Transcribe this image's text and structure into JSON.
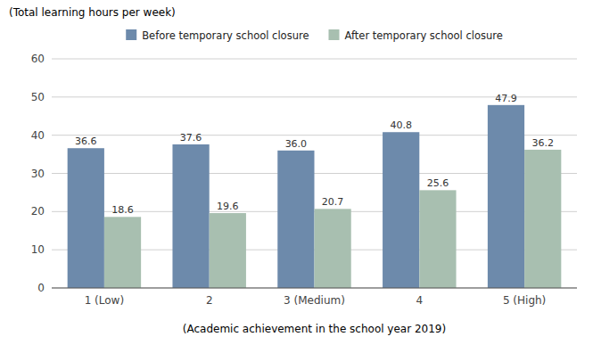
{
  "chart_data": {
    "type": "bar",
    "xlabel": "(Academic achievement in the school year 2019)",
    "ylabel": "(Total learning hours per week)",
    "categories": [
      "1  (Low)",
      "2",
      "3  (Medium)",
      "4",
      "5  (High)"
    ],
    "series": [
      {
        "name": "Before temporary school closure",
        "color": "#6d8aab",
        "values": [
          36.6,
          37.6,
          36.0,
          40.8,
          47.9
        ],
        "value_labels": [
          "36.6",
          "37.6",
          "36.0",
          "40.8",
          "47.9"
        ]
      },
      {
        "name": "After temporary school closure",
        "color": "#a8bfb0",
        "values": [
          18.6,
          19.6,
          20.7,
          25.6,
          36.2
        ],
        "value_labels": [
          "18.6",
          "19.6",
          "20.7",
          "25.6",
          "36.2"
        ]
      }
    ],
    "ylim": [
      0,
      60
    ],
    "yticks": [
      0,
      10,
      20,
      30,
      40,
      50,
      60
    ],
    "grid": true,
    "legend": "top",
    "data_labels": true
  }
}
